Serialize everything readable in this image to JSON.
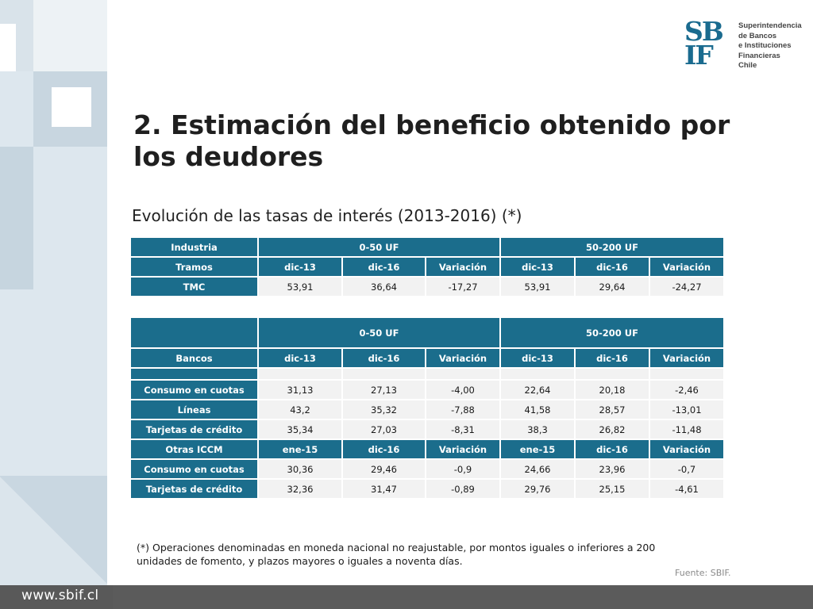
{
  "logo": {
    "mark_top": "SB",
    "mark_bottom": "IF",
    "lines": [
      "Superintendencia",
      "de Bancos",
      "e Instituciones",
      "Financieras",
      "Chile"
    ]
  },
  "title": "2. Estimación del beneficio obtenido por los deudores",
  "subtitle": "Evolución de las tasas de interés (2013-2016) (*)",
  "table1": {
    "row0": [
      "Industria",
      "0-50 UF",
      "50-200 UF"
    ],
    "row1": [
      "Tramos",
      "dic-13",
      "dic-16",
      "Variación",
      "dic-13",
      "dic-16",
      "Variación"
    ],
    "row2": [
      "TMC",
      "53,91",
      "36,64",
      "-17,27",
      "53,91",
      "29,64",
      "-24,27"
    ]
  },
  "table2": {
    "header0": [
      "",
      "0-50 UF",
      "50-200 UF"
    ],
    "header1": [
      "Bancos",
      "dic-13",
      "dic-16",
      "Variación",
      "dic-13",
      "dic-16",
      "Variación"
    ],
    "bancos_rows": [
      [
        "Consumo en cuotas",
        "31,13",
        "27,13",
        "-4,00",
        "22,64",
        "20,18",
        "-2,46"
      ],
      [
        "Líneas",
        "43,2",
        "35,32",
        "-7,88",
        "41,58",
        "28,57",
        "-13,01"
      ],
      [
        "Tarjetas de crédito",
        "35,34",
        "27,03",
        "-8,31",
        "38,3",
        "26,82",
        "-11,48"
      ]
    ],
    "header2": [
      "Otras ICCM",
      "ene-15",
      "dic-16",
      "Variación",
      "ene-15",
      "dic-16",
      "Variación"
    ],
    "iccm_rows": [
      [
        "Consumo en cuotas",
        "30,36",
        "29,46",
        "-0,9",
        "24,66",
        "23,96",
        "-0,7"
      ],
      [
        "Tarjetas de crédito",
        "32,36",
        "31,47",
        "-0,89",
        "29,76",
        "25,15",
        "-4,61"
      ]
    ]
  },
  "note": "(*) Operaciones denominadas en moneda nacional no reajustable, por montos iguales o inferiores a 200 unidades de fomento, y plazos mayores o iguales a noventa días.",
  "source": "Fuente: SBIF.",
  "footer_url": "www.sbif.cl"
}
